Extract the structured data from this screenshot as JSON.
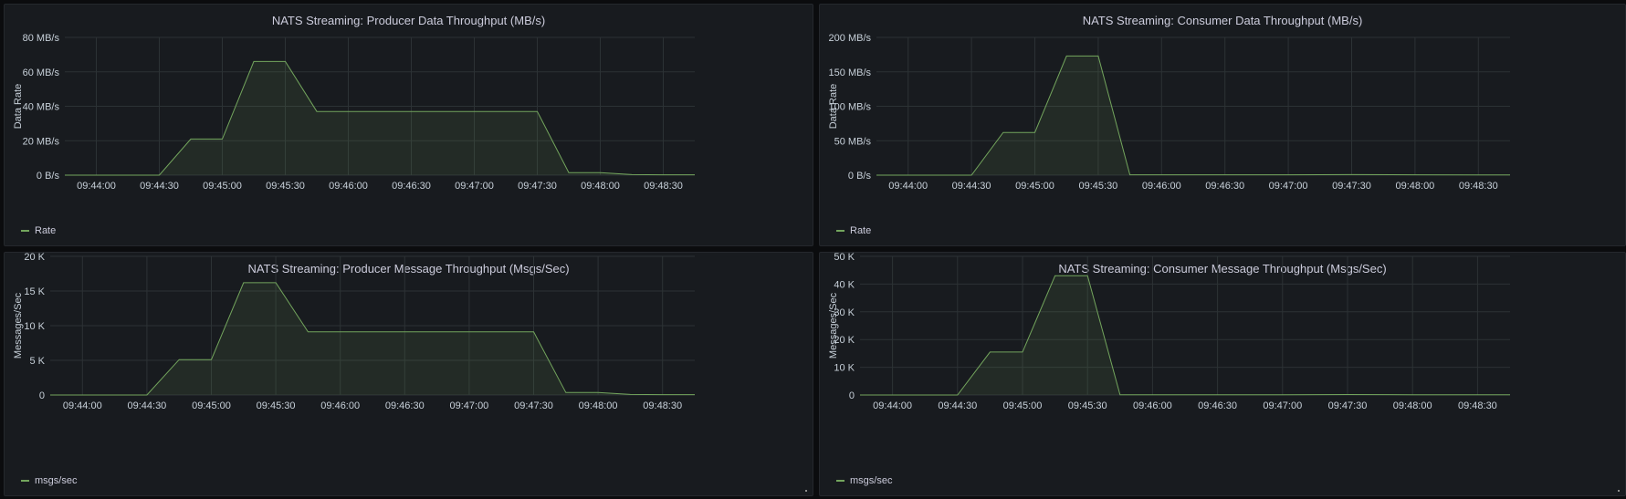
{
  "theme": {
    "background": "#0b0c0e",
    "panel_bg": "#181b1f",
    "grid": "#2c3235",
    "axis_text": "#c7d0d9",
    "series_color": "#73a55d",
    "fill_color": "rgba(115,165,93,0.12)"
  },
  "x_tick_labels": [
    "09:44:00",
    "09:44:30",
    "09:45:00",
    "09:45:30",
    "09:46:00",
    "09:46:30",
    "09:47:00",
    "09:47:30",
    "09:48:00",
    "09:48:30"
  ],
  "chart_data": [
    {
      "type": "area",
      "title": "NATS Streaming: Producer Data Throughput (MB/s)",
      "ylabel": "Data Rate",
      "xlabel": "",
      "legend": "bottom-left",
      "grid": true,
      "y_ticks": [
        "0 B/s",
        "20 MB/s",
        "40 MB/s",
        "60 MB/s",
        "80 MB/s"
      ],
      "ylim": [
        0,
        80
      ],
      "xlim": [
        "09:43:45",
        "09:48:45"
      ],
      "series": [
        {
          "name": "Rate",
          "x": [
            "09:43:45",
            "09:44:30",
            "09:44:45",
            "09:45:00",
            "09:45:15",
            "09:45:30",
            "09:45:45",
            "09:46:00",
            "09:46:30",
            "09:47:00",
            "09:47:30",
            "09:47:45",
            "09:48:00",
            "09:48:15",
            "09:48:30",
            "09:48:45"
          ],
          "values": [
            0,
            0,
            21,
            21,
            66,
            66,
            37,
            37,
            37,
            37,
            37,
            1.5,
            1.5,
            0.3,
            0.2,
            0.2
          ]
        }
      ]
    },
    {
      "type": "area",
      "title": "NATS Streaming: Consumer Data Throughput (MB/s)",
      "ylabel": "Data Rate",
      "xlabel": "",
      "legend": "bottom-left",
      "grid": true,
      "y_ticks": [
        "0 B/s",
        "50 MB/s",
        "100 MB/s",
        "150 MB/s",
        "200 MB/s"
      ],
      "ylim": [
        0,
        200
      ],
      "xlim": [
        "09:43:45",
        "09:48:45"
      ],
      "series": [
        {
          "name": "Rate",
          "x": [
            "09:43:45",
            "09:44:30",
            "09:44:45",
            "09:45:00",
            "09:45:15",
            "09:45:30",
            "09:45:45",
            "09:46:00",
            "09:46:30",
            "09:47:00",
            "09:47:30",
            "09:48:00",
            "09:48:30",
            "09:48:45"
          ],
          "values": [
            0,
            0,
            62,
            62,
            173,
            173,
            0.5,
            0.5,
            0.5,
            0.5,
            0.8,
            0.5,
            0.3,
            0.3
          ]
        }
      ]
    },
    {
      "type": "area",
      "title": "NATS Streaming: Producer Message Throughput (Msgs/Sec)",
      "ylabel": "Messages/Sec",
      "xlabel": "",
      "legend": "bottom-left",
      "grid": true,
      "y_ticks": [
        "0",
        "5 K",
        "10 K",
        "15 K",
        "20 K"
      ],
      "ylim": [
        0,
        20000
      ],
      "xlim": [
        "09:43:45",
        "09:48:45"
      ],
      "series": [
        {
          "name": "msgs/sec",
          "x": [
            "09:43:45",
            "09:44:30",
            "09:44:45",
            "09:45:00",
            "09:45:15",
            "09:45:30",
            "09:45:45",
            "09:46:00",
            "09:46:30",
            "09:47:00",
            "09:47:30",
            "09:47:45",
            "09:48:00",
            "09:48:15",
            "09:48:30",
            "09:48:45"
          ],
          "values": [
            0,
            0,
            5100,
            5100,
            16200,
            16200,
            9100,
            9100,
            9100,
            9100,
            9100,
            350,
            350,
            80,
            50,
            50
          ]
        }
      ]
    },
    {
      "type": "area",
      "title": "NATS Streaming: Consumer Message Throughput (Msgs/Sec)",
      "ylabel": "Messages/Sec",
      "xlabel": "",
      "legend": "bottom-left",
      "grid": true,
      "y_ticks": [
        "0",
        "10 K",
        "20 K",
        "30 K",
        "40 K",
        "50 K"
      ],
      "ylim": [
        0,
        50000
      ],
      "xlim": [
        "09:43:45",
        "09:48:45"
      ],
      "series": [
        {
          "name": "msgs/sec",
          "x": [
            "09:43:45",
            "09:44:30",
            "09:44:45",
            "09:45:00",
            "09:45:15",
            "09:45:30",
            "09:45:45",
            "09:46:00",
            "09:46:30",
            "09:47:00",
            "09:47:30",
            "09:48:00",
            "09:48:30",
            "09:48:45"
          ],
          "values": [
            0,
            0,
            15500,
            15500,
            43000,
            43000,
            100,
            100,
            100,
            100,
            150,
            100,
            80,
            80
          ]
        }
      ]
    }
  ]
}
